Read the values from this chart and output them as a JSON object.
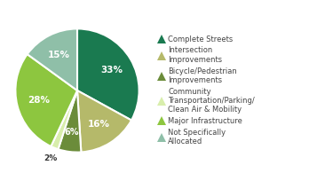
{
  "slices": [
    33,
    16,
    6,
    2,
    28,
    15
  ],
  "colors": [
    "#1a7a50",
    "#b5b96a",
    "#6b8c3a",
    "#d8eeac",
    "#8dc63f",
    "#8fbfa8"
  ],
  "pct_labels": [
    "33%",
    "16%",
    "6%",
    "2%",
    "28%",
    "15%"
  ],
  "pct_colors": [
    "white",
    "white",
    "white",
    "white",
    "white",
    "white"
  ],
  "legend_labels": [
    "Complete Streets",
    "Intersection\nImprovements",
    "Bicycle/Pedestrian\nImprovements",
    "Community\nTransportation/Parking/\nClean Air & Mobility",
    "Major Infrastructure",
    "Not Specifically\nAllocated"
  ],
  "legend_marker_colors": [
    "#1a7a50",
    "#b5b96a",
    "#6b8c3a",
    "#d8eeac",
    "#8dc63f",
    "#8fbfa8"
  ],
  "startangle": 90,
  "counterclock": false,
  "text_color": "#444444",
  "background_color": "#ffffff"
}
